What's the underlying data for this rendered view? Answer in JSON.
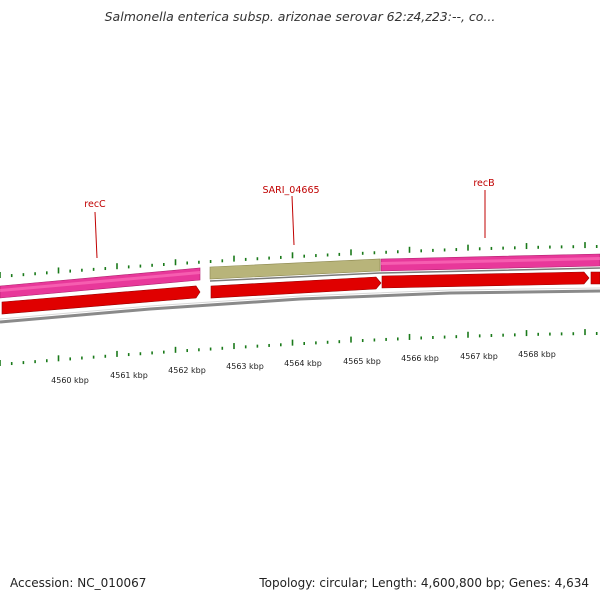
{
  "title": "Salmonella enterica subsp. arizonae serovar 62:z4,z23:--, co...",
  "genes": [
    {
      "label": "recC"
    },
    {
      "label": "SARI_04665"
    },
    {
      "label": "recB"
    }
  ],
  "scale_labels": [
    "4560 kbp",
    "4561 kbp",
    "4562 kbp",
    "4563 kbp",
    "4564 kbp",
    "4565 kbp",
    "4566 kbp",
    "4567 kbp",
    "4568 kbp"
  ],
  "colors": {
    "gene_label": "#c00000",
    "tick": "#1a7a1a",
    "pink_feature": "#e8389a",
    "olive_feature": "#b8b47a",
    "red_feature": "#e00000",
    "backbone": "#888888"
  },
  "footer": {
    "accession": "Accession: NC_010067",
    "summary": "Topology: circular; Length: 4,600,800 bp; Genes: 4,634"
  }
}
